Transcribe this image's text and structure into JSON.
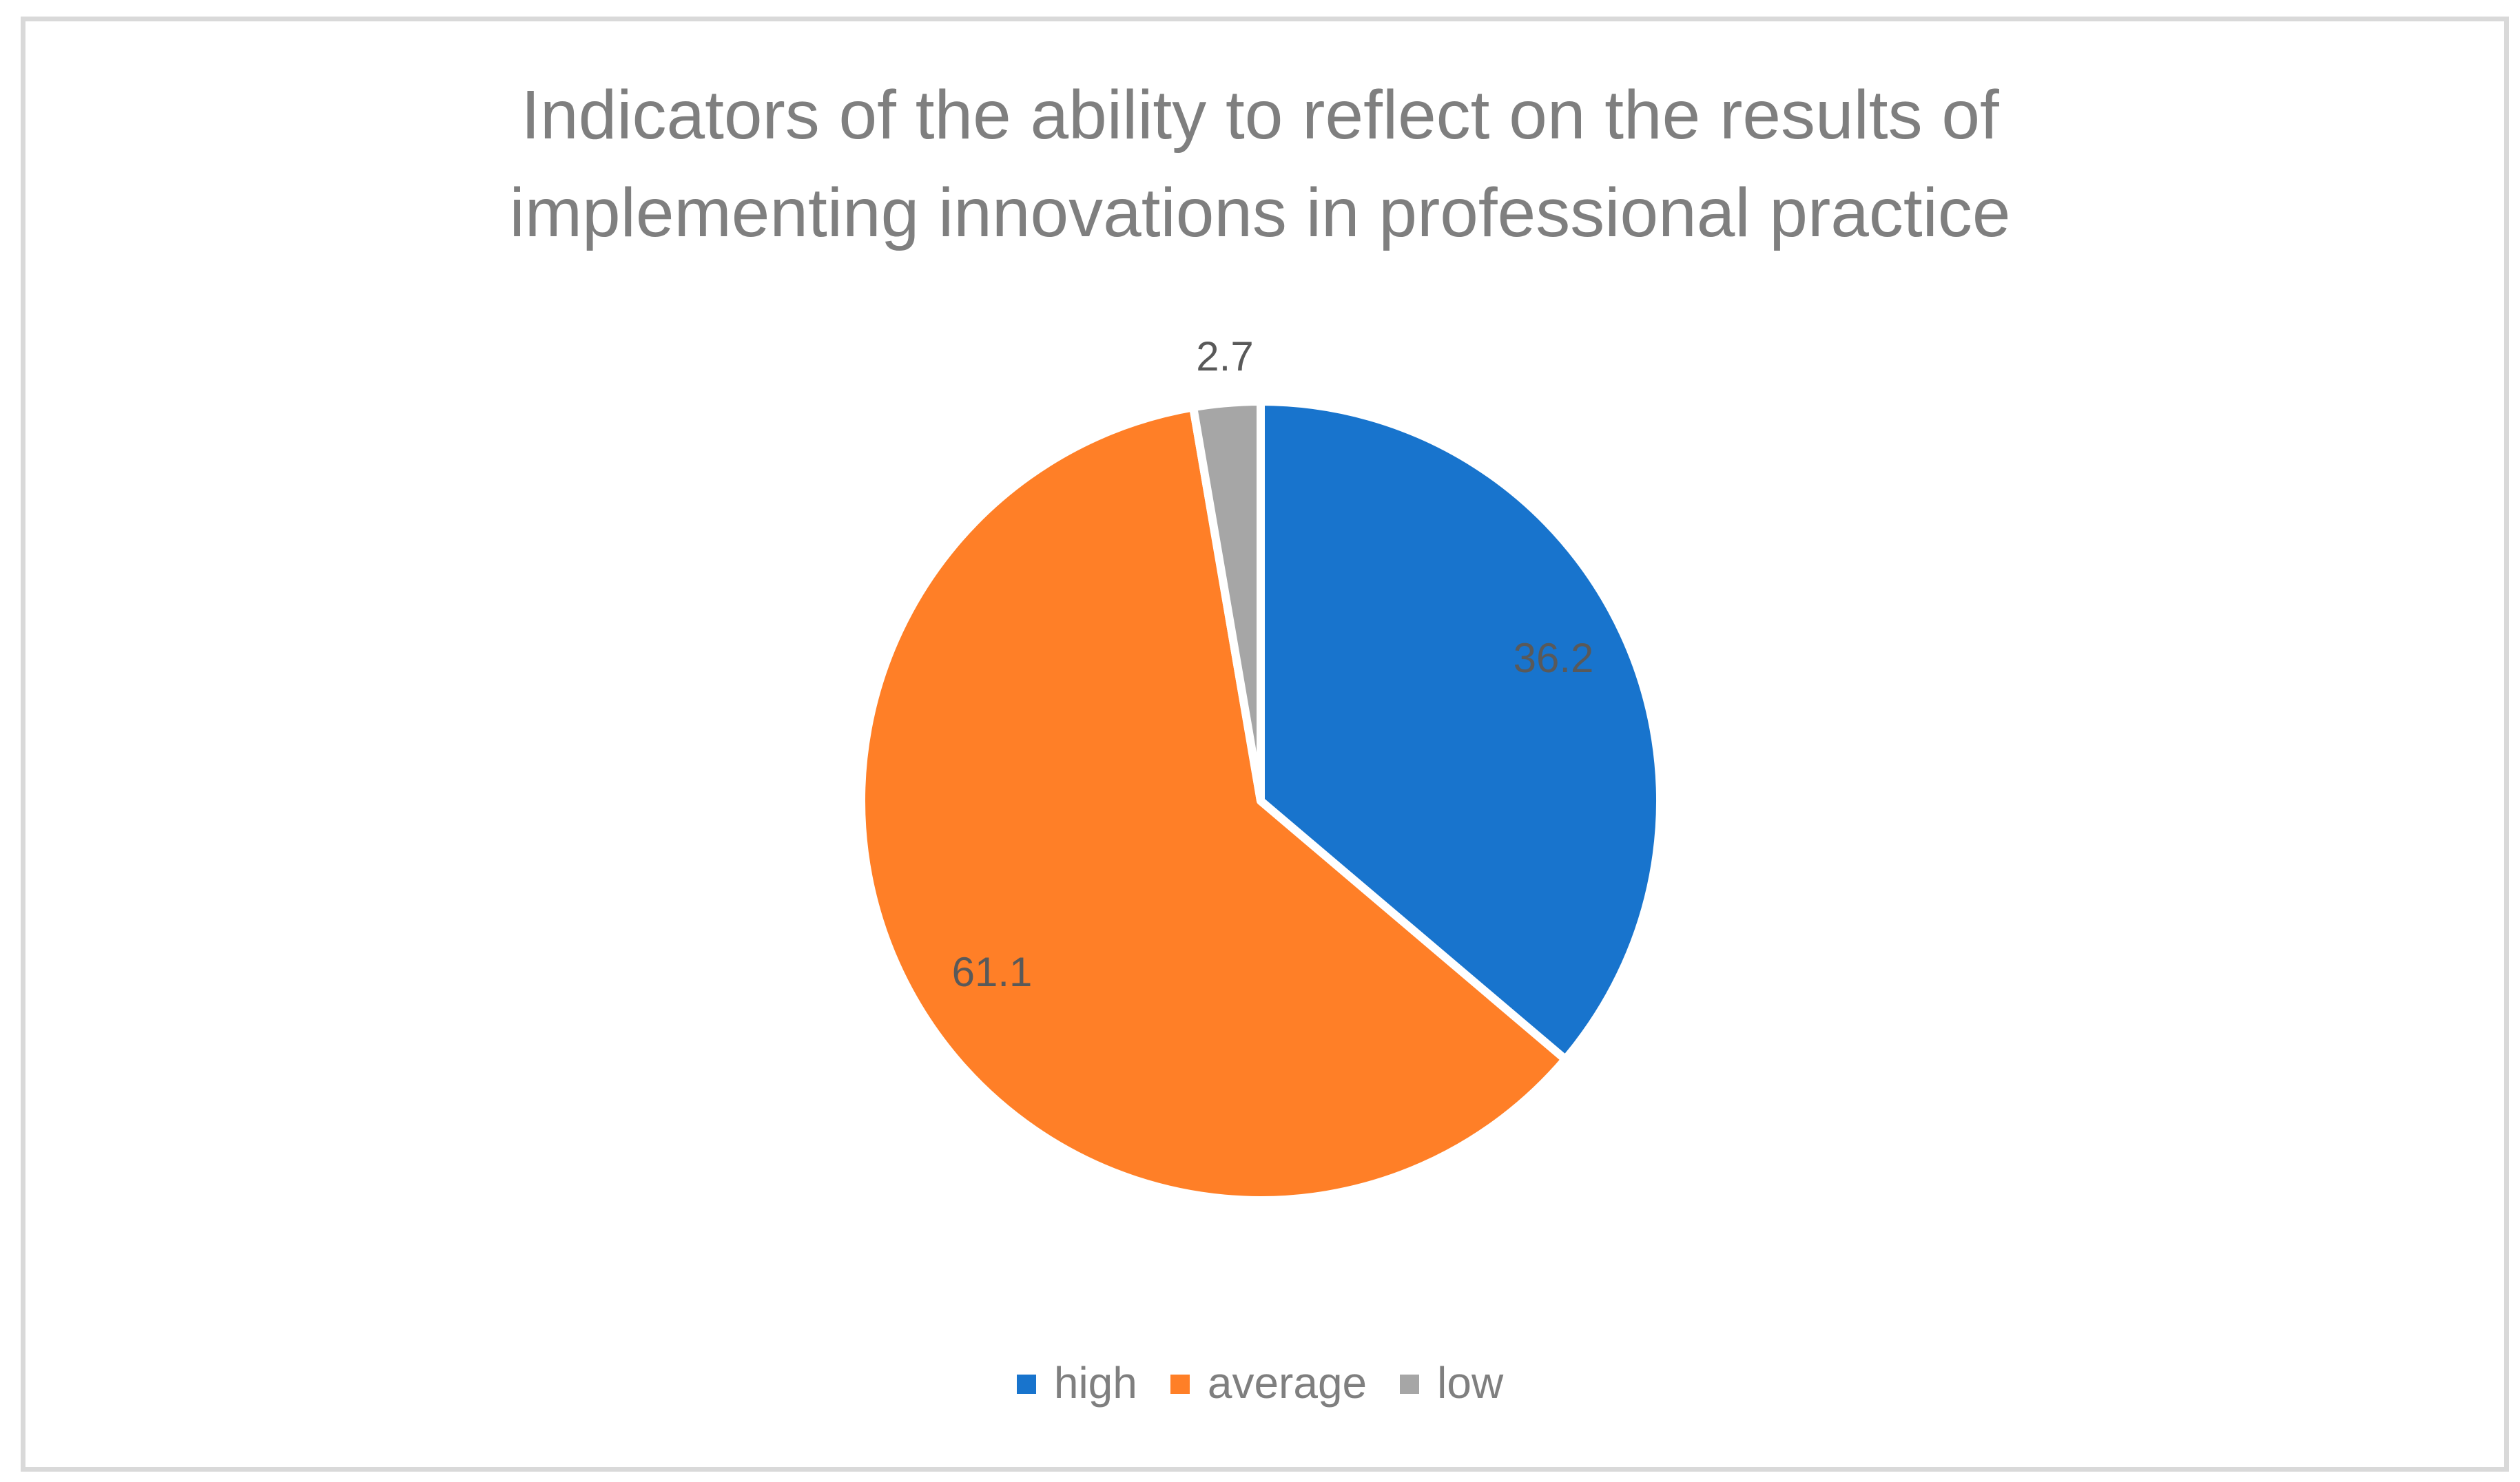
{
  "chart_data": {
    "type": "pie",
    "title": "Indicators of the ability to reflect on the results of implementing innovations in professional practice",
    "title_lines": [
      "Indicators of the ability to reflect on the results of",
      "implementing innovations in professional practice"
    ],
    "categories": [
      "high",
      "average",
      "low"
    ],
    "values": [
      36.2,
      61.1,
      2.7
    ],
    "value_labels": [
      "36.2",
      "61.1",
      "2.7"
    ],
    "colors": [
      "#1874cd",
      "#ff7f27",
      "#a6a6a6"
    ],
    "start_angle_deg": 0,
    "direction": "clockwise",
    "legend_position": "bottom",
    "xlabel": "",
    "ylabel": ""
  },
  "title": {
    "line1": "Indicators of the ability to reflect on the results of",
    "line2": "implementing innovations in professional practice"
  },
  "legend": {
    "items": [
      {
        "label": "high",
        "color": "#1874cd"
      },
      {
        "label": "average",
        "color": "#ff7f27"
      },
      {
        "label": "low",
        "color": "#a6a6a6"
      }
    ]
  },
  "labels": {
    "high": "36.2",
    "average": "61.1",
    "low": "2.7"
  }
}
